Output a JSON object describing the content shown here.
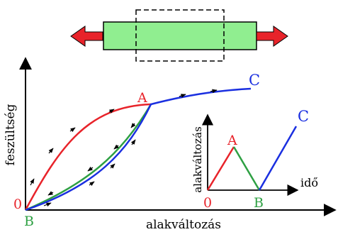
{
  "colors": {
    "red": "#e8232a",
    "green": "#2ea043",
    "blue": "#1a2fe0",
    "specimen_fill": "#90ee90",
    "axis": "#000000"
  },
  "icons": {
    "pull_left": "left-arrow-icon",
    "pull_right": "right-arrow-icon"
  },
  "main_plot": {
    "y_axis_label": "feszültség",
    "x_axis_label": "alakváltozás",
    "origin_label": "0",
    "point_a_label": "A",
    "point_b_label": "B",
    "point_c_label": "C"
  },
  "inset_plot": {
    "y_axis_label": "alakváltozás",
    "x_axis_label": "idő",
    "origin_label": "0",
    "point_a_label": "A",
    "point_b_label": "B",
    "point_c_label": "C"
  }
}
